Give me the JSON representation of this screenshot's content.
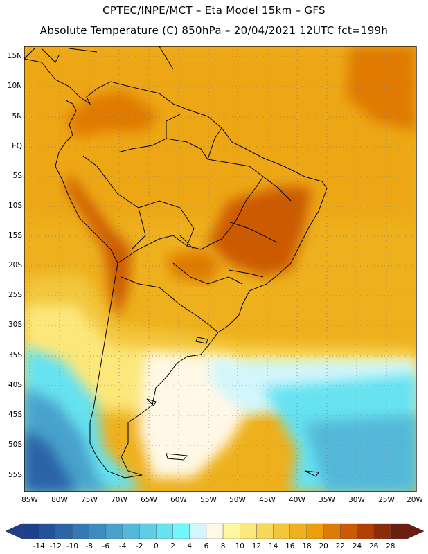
{
  "header": {
    "line1": "CPTEC/INPE/MCT –  Eta Model 15km – GFS",
    "line2": "Absolute Temperature (C) 850hPa – 20/04/2021 12UTC fct=199h"
  },
  "map": {
    "lat_labels": [
      "15N",
      "10N",
      "5N",
      "EQ",
      "5S",
      "10S",
      "15S",
      "20S",
      "25S",
      "30S",
      "35S",
      "40S",
      "45S",
      "50S",
      "55S"
    ],
    "lon_labels": [
      "85W",
      "80W",
      "75W",
      "70W",
      "65W",
      "60W",
      "55W",
      "50W",
      "45W",
      "40W",
      "35W",
      "30W",
      "25W",
      "20W"
    ]
  },
  "colorbar": {
    "labels": [
      "-14",
      "-12",
      "-10",
      "-8",
      "-6",
      "-4",
      "-2",
      "0",
      "2",
      "4",
      "6",
      "8",
      "10",
      "12",
      "14",
      "16",
      "18",
      "20",
      "22",
      "24",
      "26",
      "28"
    ],
    "colors": [
      "#1f3f8c",
      "#25509a",
      "#2c64a8",
      "#3478b6",
      "#3d8cc0",
      "#48a2cc",
      "#55b8d8",
      "#5fcde6",
      "#66e2f0",
      "#6ff7fb",
      "#d2f6fb",
      "#fff8e6",
      "#fff6a0",
      "#fbe77a",
      "#f7d85a",
      "#f3c63c",
      "#eeb01c",
      "#ec9e0c",
      "#e07a06",
      "#cc5a04",
      "#b04004",
      "#8c2c08",
      "#6b1d10"
    ]
  }
}
